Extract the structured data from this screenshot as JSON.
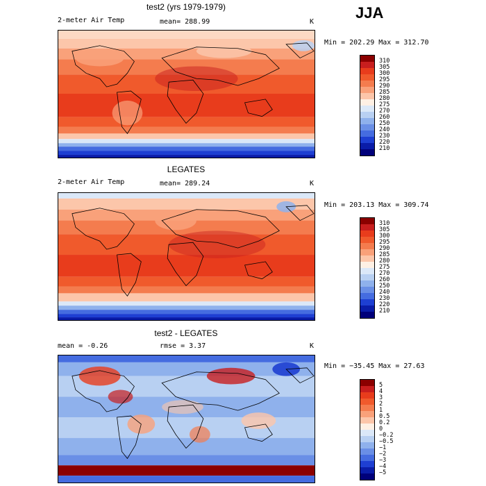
{
  "season": "JJA",
  "chart_data": [
    {
      "type": "heatmap",
      "title": "test2 (yrs 1979-1979)",
      "variable": "2-meter Air Temp",
      "mean_label": "mean= 288.99",
      "units": "K",
      "minmax": "Min = 202.29 Max = 312.70",
      "levels": [
        "310",
        "305",
        "300",
        "295",
        "290",
        "285",
        "280",
        "275",
        "270",
        "260",
        "250",
        "240",
        "230",
        "220",
        "210"
      ],
      "colors": [
        "#8b0000",
        "#c81e1e",
        "#e83c1c",
        "#f05a2c",
        "#f47c4e",
        "#f9a17a",
        "#fcc6aa",
        "#fef0e4",
        "#dbe8f8",
        "#b8d0f2",
        "#8fb1ec",
        "#6a8fe6",
        "#456ce0",
        "#1e3fd2",
        "#0a1ca8",
        "#00007a"
      ],
      "min": 202.29,
      "max": 312.7,
      "mean": 288.99
    },
    {
      "type": "heatmap",
      "title": "LEGATES",
      "variable": "2-meter Air Temp",
      "mean_label": "mean= 289.24",
      "units": "K",
      "minmax": "Min = 203.13 Max = 309.74",
      "levels": [
        "310",
        "305",
        "300",
        "295",
        "290",
        "285",
        "280",
        "275",
        "270",
        "260",
        "250",
        "240",
        "230",
        "220",
        "210"
      ],
      "colors": [
        "#8b0000",
        "#c81e1e",
        "#e83c1c",
        "#f05a2c",
        "#f47c4e",
        "#f9a17a",
        "#fcc6aa",
        "#fef0e4",
        "#dbe8f8",
        "#b8d0f2",
        "#8fb1ec",
        "#6a8fe6",
        "#456ce0",
        "#1e3fd2",
        "#0a1ca8",
        "#00007a"
      ],
      "min": 203.13,
      "max": 309.74,
      "mean": 289.24
    },
    {
      "type": "heatmap",
      "title": "test2 - LEGATES",
      "mean_label": "mean =   -0.26",
      "rmse_label": "rmse =    3.37",
      "units": "K",
      "minmax": "Min = −35.45 Max =  27.63",
      "levels": [
        "5",
        "4",
        "3",
        "2",
        "1",
        "0.5",
        "0.2",
        "0",
        "−0.2",
        "−0.5",
        "−1",
        "−2",
        "−3",
        "−4",
        "−5"
      ],
      "colors": [
        "#8b0000",
        "#c81e1e",
        "#e83c1c",
        "#f05a2c",
        "#f47c4e",
        "#f9a17a",
        "#fcc6aa",
        "#fef0e4",
        "#dbe8f8",
        "#b8d0f2",
        "#8fb1ec",
        "#6a8fe6",
        "#456ce0",
        "#1e3fd2",
        "#0a1ca8",
        "#00007a"
      ],
      "min": -35.45,
      "max": 27.63,
      "mean": -0.26,
      "rmse": 3.37
    }
  ]
}
